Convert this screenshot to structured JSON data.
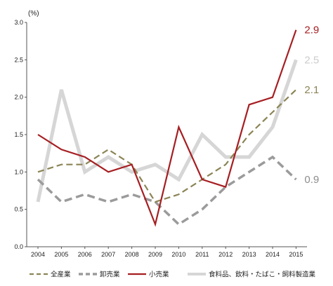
{
  "chart_data": {
    "type": "line",
    "unit_label": "(%)",
    "x": [
      "2004",
      "2005",
      "2006",
      "2007",
      "2008",
      "2009",
      "2010",
      "2011",
      "2012",
      "2013",
      "2014",
      "2015"
    ],
    "ylim": [
      0,
      3.0
    ],
    "yticks": [
      "0.0",
      "0.5",
      "1.0",
      "1.5",
      "2.0",
      "2.5",
      "3.0"
    ],
    "grid": false,
    "legend_position": "bottom",
    "series": [
      {
        "name": "全産業",
        "color": "#8b8455",
        "dash": "dash",
        "width": 2.2,
        "values": [
          1.0,
          1.1,
          1.1,
          1.3,
          1.1,
          0.6,
          0.7,
          0.9,
          1.1,
          1.5,
          1.8,
          2.1
        ],
        "end_label": "2.1"
      },
      {
        "name": "卸売業",
        "color": "#9b9b9b",
        "dash": "dash",
        "width": 3.5,
        "values": [
          0.9,
          0.6,
          0.7,
          0.6,
          0.7,
          0.6,
          0.3,
          0.5,
          0.8,
          1.0,
          1.2,
          0.9
        ],
        "end_label": "0.9"
      },
      {
        "name": "小売業",
        "color": "#a61e22",
        "dash": "solid",
        "width": 2.2,
        "values": [
          1.5,
          1.3,
          1.2,
          1.0,
          1.1,
          0.3,
          1.6,
          0.9,
          0.8,
          1.9,
          2.0,
          2.9
        ],
        "end_label": "2.9"
      },
      {
        "name": "食料品、飲料・たばこ・飼料製造業",
        "color": "#d6d6d6",
        "dash": "solid",
        "width": 5,
        "values": [
          0.6,
          2.1,
          1.0,
          1.2,
          1.0,
          1.1,
          0.9,
          1.5,
          1.2,
          1.2,
          1.6,
          2.5
        ],
        "end_label": "2.5"
      }
    ]
  }
}
